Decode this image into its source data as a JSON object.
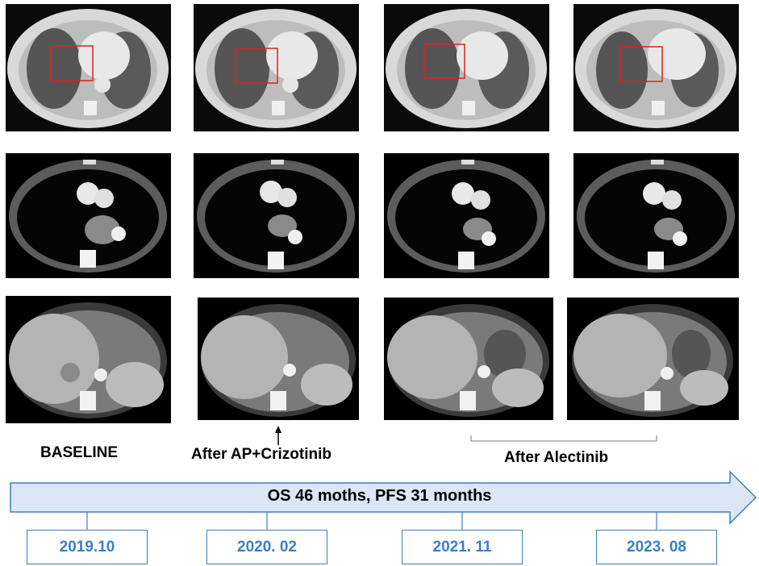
{
  "columns": [
    {
      "label": "BASELINE",
      "date": "2019.10"
    },
    {
      "label": "After AP+Crizotinib",
      "date": "2020. 02"
    },
    {
      "label": "",
      "date": "2021. 11"
    },
    {
      "label": "",
      "date": "2023. 08"
    }
  ],
  "bracket_label": "After Alectinib",
  "timeline_text": "OS 46 moths, PFS 31 months",
  "rows": [
    "lung-window",
    "mediastinal-window",
    "abdominal"
  ],
  "colors": {
    "accent": "#3b7fc4",
    "arrow_fill": "#dce6f4",
    "highlight": "#e02020"
  },
  "icons": [
    "up-arrow-icon"
  ]
}
